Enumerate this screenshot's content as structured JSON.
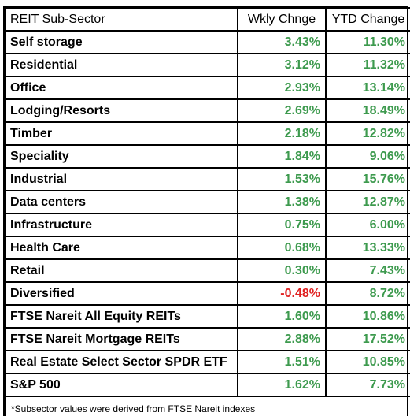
{
  "table": {
    "headers": [
      "REIT Sub-Sector",
      "Wkly Chnge",
      "YTD Change"
    ],
    "rows": [
      {
        "sector": "Self storage",
        "weekly": "3.43%",
        "ytd": "11.30%"
      },
      {
        "sector": "Residential",
        "weekly": "3.12%",
        "ytd": "11.32%"
      },
      {
        "sector": "Office",
        "weekly": "2.93%",
        "ytd": "13.14%"
      },
      {
        "sector": "Lodging/Resorts",
        "weekly": "2.69%",
        "ytd": "18.49%"
      },
      {
        "sector": "Timber",
        "weekly": "2.18%",
        "ytd": "12.82%"
      },
      {
        "sector": "Speciality",
        "weekly": "1.84%",
        "ytd": "9.06%"
      },
      {
        "sector": "Industrial",
        "weekly": "1.53%",
        "ytd": "15.76%"
      },
      {
        "sector": "Data centers",
        "weekly": "1.38%",
        "ytd": "12.87%"
      },
      {
        "sector": "Infrastructure",
        "weekly": "0.75%",
        "ytd": "6.00%"
      },
      {
        "sector": "Health Care",
        "weekly": "0.68%",
        "ytd": "13.33%"
      },
      {
        "sector": "Retail",
        "weekly": "0.30%",
        "ytd": "7.43%"
      },
      {
        "sector": "Diversified",
        "weekly": "-0.48%",
        "ytd": "8.72%"
      },
      {
        "sector": "FTSE Nareit All Equity REITs",
        "weekly": "1.60%",
        "ytd": "10.86%"
      },
      {
        "sector": "FTSE Nareit Mortgage REITs",
        "weekly": "2.88%",
        "ytd": "17.52%"
      },
      {
        "sector": "Real Estate Select Sector SPDR ETF",
        "weekly": "1.51%",
        "ytd": "10.85%"
      },
      {
        "sector": "S&P 500",
        "weekly": "1.62%",
        "ytd": "7.73%"
      }
    ],
    "footnote": "*Subsector values were derived from FTSE Nareit indexes"
  },
  "colors": {
    "positive": "#3d9a4e",
    "negative": "#e02020",
    "border": "#000000"
  }
}
